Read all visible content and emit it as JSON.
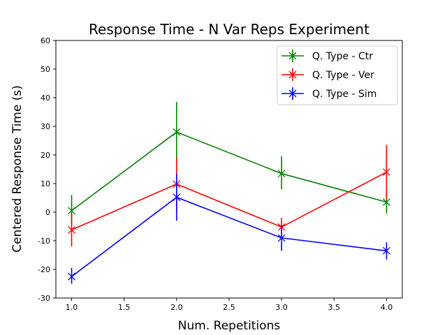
{
  "chart_data": {
    "type": "line",
    "title": "Response Time - N Var Reps Experiment",
    "xlabel": "Num. Repetitions",
    "ylabel": "Centered Response Time (s)",
    "xlim": [
      0.85,
      4.15
    ],
    "ylim": [
      -30,
      60
    ],
    "xticks": [
      1.0,
      1.5,
      2.0,
      2.5,
      3.0,
      3.5,
      4.0
    ],
    "xtick_labels": [
      "1.0",
      "1.5",
      "2.0",
      "2.5",
      "3.0",
      "3.5",
      "4.0"
    ],
    "yticks": [
      -30,
      -20,
      -10,
      0,
      10,
      20,
      30,
      40,
      50,
      60
    ],
    "ytick_labels": [
      "-30",
      "-20",
      "-10",
      "0",
      "10",
      "20",
      "30",
      "40",
      "50",
      "60"
    ],
    "grid": false,
    "legend_position": "top-right",
    "x": [
      1.0,
      2.0,
      3.0,
      4.0
    ],
    "series": [
      {
        "name": "Q. Type - Ctr",
        "color": "#008000",
        "values": [
          0.5,
          28.0,
          13.5,
          3.5
        ],
        "err_low": [
          -5.0,
          18.0,
          8.0,
          -0.5
        ],
        "err_high": [
          6.0,
          38.5,
          19.5,
          7.5
        ]
      },
      {
        "name": "Q. Type - Ver",
        "color": "#ff0000",
        "values": [
          -6.2,
          9.8,
          -5.2,
          14.0
        ],
        "err_low": [
          -12.0,
          0.0,
          -8.5,
          4.5
        ],
        "err_high": [
          -0.5,
          19.0,
          -2.0,
          23.5
        ]
      },
      {
        "name": "Q. Type - Sim",
        "color": "#0000ff",
        "values": [
          -22.5,
          5.2,
          -9.0,
          -13.5
        ],
        "err_low": [
          -25.0,
          -3.0,
          -13.5,
          -16.5
        ],
        "err_high": [
          -19.5,
          13.5,
          -4.5,
          -10.5
        ]
      }
    ]
  }
}
